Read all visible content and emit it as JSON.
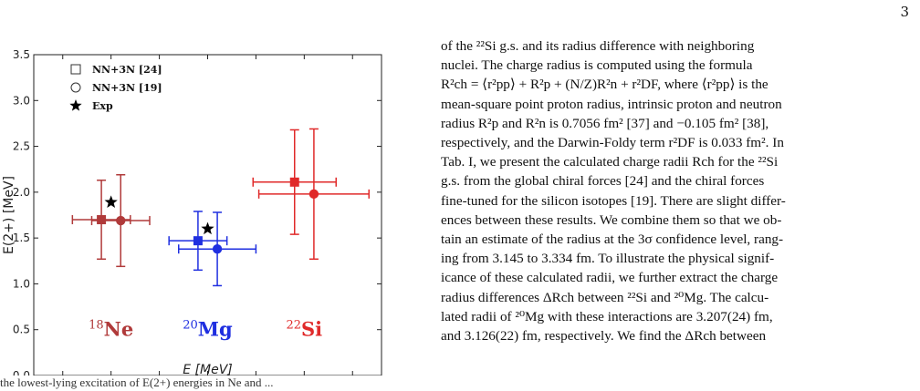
{
  "page": {
    "number": "3"
  },
  "chart_data": {
    "type": "scatter",
    "xlabel": "E [MeV]",
    "ylabel": "E(2+) [MeV]",
    "xlim": [
      0.2,
      3.8
    ],
    "ylim": [
      0.0,
      3.5
    ],
    "xticks": [
      "0.5",
      "1.0",
      "1.5",
      "2.0",
      "2.5",
      "3.0",
      "3.5"
    ],
    "yticks": [
      "0.0",
      "0.5",
      "1.0",
      "1.5",
      "2.0",
      "2.5",
      "3.0",
      "3.5"
    ],
    "legend": {
      "position": "top-left",
      "entries": [
        {
          "label": "NN+3N [24]",
          "marker": "square-open"
        },
        {
          "label": "NN+3N [19]",
          "marker": "circle-open"
        },
        {
          "label": "Exp",
          "marker": "star"
        }
      ]
    },
    "groups": [
      {
        "label_mass": "18",
        "label_element": "Ne",
        "color": "#b03a3a",
        "label_pos": [
          1.0,
          0.5
        ],
        "points": [
          {
            "series": "NN+3N [24]",
            "marker": "square",
            "x": 0.9,
            "y": 1.7,
            "xerr": 0.3,
            "yerr": 0.43
          },
          {
            "series": "NN+3N [19]",
            "marker": "circle",
            "x": 1.1,
            "y": 1.69,
            "xerr": 0.3,
            "yerr": 0.5
          },
          {
            "series": "Exp",
            "marker": "star",
            "x": 1.0,
            "y": 1.89
          }
        ]
      },
      {
        "label_mass": "20",
        "label_element": "Mg",
        "color": "#1f2fe0",
        "label_pos": [
          2.0,
          0.5
        ],
        "points": [
          {
            "series": "NN+3N [24]",
            "marker": "square",
            "x": 1.9,
            "y": 1.47,
            "xerr": 0.3,
            "yerr": 0.32
          },
          {
            "series": "NN+3N [19]",
            "marker": "circle",
            "x": 2.1,
            "y": 1.38,
            "xerr": 0.4,
            "yerr": 0.4
          },
          {
            "series": "Exp",
            "marker": "star",
            "x": 2.0,
            "y": 1.6
          }
        ]
      },
      {
        "label_mass": "22",
        "label_element": "Si",
        "color": "#e02a2a",
        "label_pos": [
          3.0,
          0.5
        ],
        "points": [
          {
            "series": "NN+3N [24]",
            "marker": "square",
            "x": 2.9,
            "y": 2.11,
            "xerr": 0.43,
            "yerr": 0.57
          },
          {
            "series": "NN+3N [19]",
            "marker": "circle",
            "x": 3.1,
            "y": 1.98,
            "xerr": 0.57,
            "yerr": 0.71
          }
        ]
      }
    ]
  },
  "text": {
    "lines": [
      "of the ²²Si g.s. and its radius difference with neighboring",
      "nuclei. The charge radius is computed using the formula",
      "R²ch = ⟨r²pp⟩ + R²p + (N/Z)R²n + r²DF, where ⟨r²pp⟩ is the",
      "mean-square point proton radius, intrinsic proton and neutron",
      "radius R²p and R²n is 0.7056 fm² [37] and −0.105 fm² [38],",
      "respectively, and the Darwin-Foldy term r²DF is 0.033 fm². In",
      "Tab. I, we present the calculated charge radii Rch for the ²²Si",
      "g.s. from the global chiral forces [24] and the chiral forces",
      "fine-tuned for the silicon isotopes [19]. There are slight differ-",
      "ences between these results. We combine them so that we ob-",
      "tain an estimate of the radius at the 3σ confidence level, rang-",
      "ing from 3.145 to 3.334 fm. To illustrate the physical signif-",
      "icance of these calculated radii, we further extract the charge",
      "radius differences ΔRch between ²²Si and ²⁰Mg. The calcu-",
      "lated radii of ²⁰Mg with these interactions are 3.207(24) fm,",
      "and 3.126(22) fm, respectively. We find the ΔRch between"
    ]
  },
  "caption_fragment": "the lowest-lying excitation of E(2+) energies in Ne and ..."
}
